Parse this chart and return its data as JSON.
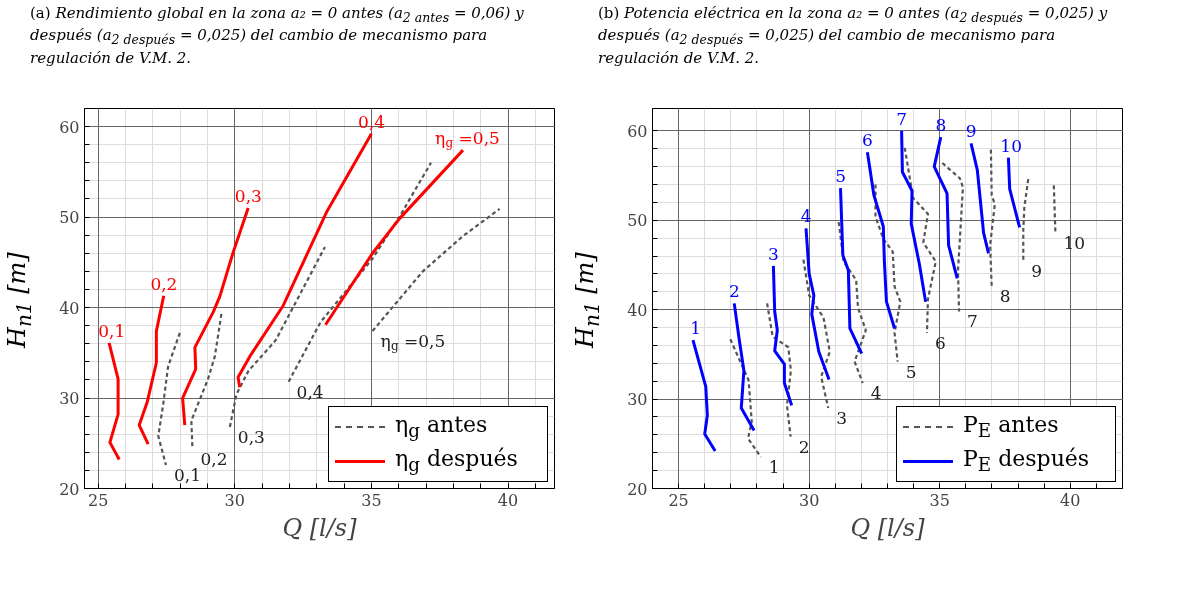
{
  "chart_data": [
    {
      "type": "line",
      "title": "(a) Rendimiento global en la zona a₂ = 0 antes (a$_{2 antes}$ = 0,06) y después (a$_{2 después}$ = 0,025) del cambio de mecanismo para regulación de V.M. 2.",
      "xlabel": "Q [l/s]",
      "ylabel": "H$_{n1}$ [m]",
      "xlim": [
        24.5,
        41.7
      ],
      "ylim": [
        20,
        62
      ],
      "xticks": [
        25,
        {
          "value": 26,
          "label": null
        },
        {
          "value": 27,
          "label": null
        },
        {
          "value": 28,
          "label": null
        },
        {
          "value": 29,
          "label": null
        },
        30,
        {
          "value": 31,
          "label": null
        },
        {
          "value": 32,
          "label": null
        },
        {
          "value": 33,
          "label": null
        },
        {
          "value": 34,
          "label": null
        },
        35,
        {
          "value": 36,
          "label": null
        },
        {
          "value": 37,
          "label": null
        },
        {
          "value": 38,
          "label": null
        },
        {
          "value": 39,
          "label": null
        },
        40,
        {
          "value": 41,
          "label": null
        }
      ],
      "yticks": [
        20,
        {
          "value": 22,
          "label": null
        },
        {
          "value": 24,
          "label": null
        },
        {
          "value": 26,
          "label": null
        },
        {
          "value": 28,
          "label": null
        },
        30,
        {
          "value": 32,
          "label": null
        },
        {
          "value": 34,
          "label": null
        },
        {
          "value": 36,
          "label": null
        },
        {
          "value": 38,
          "label": null
        },
        40,
        {
          "value": 42,
          "label": null
        },
        {
          "value": 44,
          "label": null
        },
        {
          "value": 46,
          "label": null
        },
        {
          "value": 48,
          "label": null
        },
        50,
        {
          "value": 52,
          "label": null
        },
        {
          "value": 54,
          "label": null
        },
        {
          "value": 56,
          "label": null
        },
        {
          "value": 58,
          "label": null
        },
        60
      ],
      "grid": true,
      "legend": "bottom right",
      "series": [
        {
          "name": "η$_{g}$ antes",
          "color": "#555555",
          "line_style": "dashed",
          "x": [
            27.99,
            27.56,
            27.38,
            27.2,
            27.48
          ],
          "values": [
            37.2,
            33.5,
            29.3,
            25.8,
            22.6
          ]
        },
        {
          "color": "#555555",
          "line_style": "dashed",
          "x": [
            29.51,
            29.27,
            29.02,
            28.41,
            28.45
          ],
          "values": [
            39.3,
            34.6,
            32.1,
            27.5,
            24.4
          ]
        },
        {
          "color": "#555555",
          "line_style": "dashed",
          "x": [
            29.82,
            30.06,
            30.5,
            31.5,
            33.3
          ],
          "values": [
            26.8,
            30.4,
            33.0,
            36.4,
            46.7
          ]
        },
        {
          "color": "#555555",
          "line_style": "dashed",
          "x": [
            31.97,
            33.14,
            35.04,
            36.02,
            37.18
          ],
          "values": [
            31.8,
            38.4,
            45.4,
            50.0,
            56.0
          ]
        },
        {
          "color": "#555555",
          "line_style": "dashed",
          "x": [
            35.04,
            36.88,
            38.35,
            39.69
          ],
          "values": [
            37.4,
            44.0,
            47.9,
            50.9
          ]
        },
        {
          "name": "η$_{g}$ después",
          "color": "#ff0000",
          "line_style": "solid",
          "x": [
            25.4,
            25.73,
            25.73,
            25.43,
            25.77
          ],
          "values": [
            36.1,
            32.1,
            28.2,
            25.1,
            23.2
          ]
        },
        {
          "color": "#ff0000",
          "line_style": "solid",
          "x": [
            27.4,
            27.13,
            27.13,
            26.79,
            26.5,
            26.83
          ],
          "values": [
            41.3,
            37.4,
            33.9,
            29.5,
            27.0,
            24.9
          ]
        },
        {
          "color": "#ff0000",
          "line_style": "solid",
          "x": [
            30.49,
            29.94,
            29.45,
            29.21,
            28.54,
            28.57,
            28.09,
            28.17
          ],
          "values": [
            51.0,
            46.1,
            41.2,
            39.5,
            35.6,
            33.2,
            30.0,
            27.0
          ]
        },
        {
          "color": "#ff0000",
          "line_style": "solid",
          "x": [
            30.18,
            30.12,
            30.55,
            31.77,
            33.35,
            35.0
          ],
          "values": [
            31.2,
            32.3,
            34.6,
            40.2,
            50.5,
            59.2
          ]
        },
        {
          "color": "#ff0000",
          "line_style": "solid",
          "x": [
            33.32,
            35.04,
            36.02,
            38.35
          ],
          "values": [
            38.1,
            46.0,
            49.8,
            57.4
          ]
        }
      ],
      "annotations": [
        {
          "text": "0,1",
          "x": 27.48,
          "y": 22.6
        },
        {
          "text": "0,2",
          "x": 28.45,
          "y": 24.4
        },
        {
          "text": "0,3",
          "x": 29.82,
          "y": 26.8
        },
        {
          "text": "0,4",
          "x": 31.97,
          "y": 31.8
        },
        {
          "text": "η$_{g}$ =0,5",
          "x": 35.04,
          "y": 37.4
        },
        {
          "text": "0,1",
          "x": 25.4,
          "y": 36.1
        },
        {
          "text": "0,2",
          "x": 27.4,
          "y": 41.3
        },
        {
          "text": "0,3",
          "x": 30.49,
          "y": 51.0
        },
        {
          "text": "0,4",
          "x": 35.0,
          "y": 59.2
        },
        {
          "text": "η$_{g}$ =0,5",
          "x": 38.35,
          "y": 57.4
        }
      ]
    },
    {
      "type": "line",
      "title": "(b) Potencia eléctrica en la zona a₂ = 0 antes (a$_{2 después}$ = 0,025) y después (a$_{2 después}$ = 0,025) del cambio de mecanismo para regulación de V.M. 2.",
      "xlabel": "Q [l/s]",
      "ylabel": "H$_{n1}$ [m]",
      "xlim": [
        24,
        42
      ],
      "ylim": [
        20,
        62.5
      ],
      "xticks": [
        {
          "value": 24,
          "label": null
        },
        25,
        {
          "value": 26,
          "label": null
        },
        {
          "value": 27,
          "label": null
        },
        {
          "value": 28,
          "label": null
        },
        {
          "value": 29,
          "label": null
        },
        30,
        {
          "value": 31,
          "label": null
        },
        {
          "value": 32,
          "label": null
        },
        {
          "value": 33,
          "label": null
        },
        {
          "value": 34,
          "label": null
        },
        35,
        {
          "value": 36,
          "label": null
        },
        {
          "value": 37,
          "label": null
        },
        {
          "value": 38,
          "label": null
        },
        {
          "value": 39,
          "label": null
        },
        40,
        {
          "value": 41,
          "label": null
        }
      ],
      "yticks": [
        20,
        {
          "value": 22,
          "label": null
        },
        {
          "value": 24,
          "label": null
        },
        {
          "value": 26,
          "label": null
        },
        {
          "value": 28,
          "label": null
        },
        30,
        {
          "value": 32,
          "label": null
        },
        {
          "value": 34,
          "label": null
        },
        {
          "value": 36,
          "label": null
        },
        {
          "value": 38,
          "label": null
        },
        40,
        {
          "value": 42,
          "label": null
        },
        {
          "value": 44,
          "label": null
        },
        {
          "value": 46,
          "label": null
        },
        {
          "value": 48,
          "label": null
        },
        50,
        {
          "value": 52,
          "label": null
        },
        {
          "value": 54,
          "label": null
        },
        {
          "value": 56,
          "label": null
        },
        {
          "value": 58,
          "label": null
        },
        60
      ],
      "grid": true,
      "legend": "bottom right",
      "series": [
        {
          "name": "P$_{E}$ antes",
          "color": "#555555",
          "line_style": "dashed",
          "x": [
            26.98,
            27.68,
            27.8,
            27.66,
            28.15
          ],
          "values": [
            36.7,
            32.1,
            27.5,
            25.6,
            23.5
          ]
        },
        {
          "color": "#555555",
          "line_style": "dashed",
          "x": [
            28.39,
            28.6,
            29.2,
            29.3,
            29.15,
            29.29
          ],
          "values": [
            40.7,
            37.0,
            35.8,
            33.2,
            29.3,
            25.8
          ]
        },
        {
          "color": "#555555",
          "line_style": "dashed",
          "x": [
            29.78,
            30.0,
            30.55,
            30.79,
            30.46,
            30.73
          ],
          "values": [
            45.6,
            41.6,
            39.1,
            35.3,
            32.5,
            29.0
          ]
        },
        {
          "color": "#555555",
          "line_style": "dashed",
          "x": [
            31.13,
            31.32,
            31.8,
            31.87,
            32.17,
            31.74,
            32.05
          ],
          "values": [
            49.8,
            45.4,
            43.3,
            40.2,
            37.7,
            34.2,
            31.8
          ]
        },
        {
          "color": "#555555",
          "line_style": "dashed",
          "x": [
            32.54,
            32.54,
            32.84,
            33.2,
            33.27,
            33.49,
            33.27,
            33.39
          ],
          "values": [
            54.0,
            50.4,
            47.9,
            46.5,
            42.6,
            40.9,
            37.4,
            34.2
          ]
        },
        {
          "color": "#555555",
          "line_style": "dashed",
          "x": [
            33.66,
            33.98,
            34.55,
            34.37,
            34.85,
            34.55,
            34.51
          ],
          "values": [
            58.1,
            52.5,
            50.7,
            47.5,
            45.4,
            41.2,
            37.4
          ]
        },
        {
          "color": "#555555",
          "line_style": "dashed",
          "x": [
            35.1,
            35.77,
            35.89,
            35.7,
            35.74
          ],
          "values": [
            56.4,
            54.7,
            53.7,
            44.4,
            39.8
          ]
        },
        {
          "color": "#555555",
          "line_style": "dashed",
          "x": [
            36.96,
            36.99,
            37.11,
            36.93,
            36.99
          ],
          "values": [
            57.9,
            52.8,
            51.8,
            47.2,
            42.6
          ]
        },
        {
          "color": "#555555",
          "line_style": "dashed",
          "x": [
            38.39,
            38.24,
            38.2,
            38.2
          ],
          "values": [
            54.6,
            51.4,
            48.9,
            45.4
          ]
        },
        {
          "color": "#555555",
          "line_style": "dashed",
          "x": [
            39.37,
            39.43
          ],
          "values": [
            53.9,
            48.6
          ]
        },
        {
          "name": "P$_{E}$ después",
          "color": "#0000ff",
          "line_style": "solid",
          "x": [
            25.55,
            26.04,
            26.1,
            26.0,
            26.4
          ],
          "values": [
            36.6,
            31.4,
            28.2,
            26.1,
            24.2
          ]
        },
        {
          "color": "#0000ff",
          "line_style": "solid",
          "x": [
            27.13,
            27.32,
            27.5,
            27.4,
            27.89
          ],
          "values": [
            40.7,
            36.7,
            33.2,
            29.0,
            26.5
          ]
        },
        {
          "color": "#0000ff",
          "line_style": "solid",
          "x": [
            28.63,
            28.68,
            28.78,
            28.68,
            29.05,
            29.05,
            29.33
          ],
          "values": [
            44.9,
            39.8,
            37.7,
            35.4,
            33.9,
            31.8,
            29.3
          ]
        },
        {
          "color": "#0000ff",
          "line_style": "solid",
          "x": [
            29.88,
            30.0,
            30.18,
            30.1,
            30.37,
            30.76
          ],
          "values": [
            49.1,
            44.0,
            41.6,
            39.5,
            35.3,
            32.2
          ]
        },
        {
          "color": "#0000ff",
          "line_style": "solid",
          "x": [
            31.2,
            31.29,
            31.5,
            31.56,
            32.01
          ],
          "values": [
            53.6,
            46.1,
            44.4,
            37.9,
            35.1
          ]
        },
        {
          "color": "#0000ff",
          "line_style": "solid",
          "x": [
            32.23,
            32.48,
            32.84,
            32.88,
            32.96,
            33.27
          ],
          "values": [
            57.6,
            52.8,
            49.3,
            45.4,
            40.9,
            37.9
          ]
        },
        {
          "color": "#0000ff",
          "line_style": "solid",
          "x": [
            33.54,
            33.57,
            33.94,
            33.91,
            34.22,
            34.46
          ],
          "values": [
            60.0,
            55.4,
            53.3,
            49.6,
            45.1,
            40.9
          ]
        },
        {
          "color": "#0000ff",
          "line_style": "solid",
          "x": [
            35.04,
            34.79,
            35.28,
            35.34,
            35.67
          ],
          "values": [
            59.3,
            56.0,
            53.0,
            47.2,
            43.5
          ]
        },
        {
          "color": "#0000ff",
          "line_style": "solid",
          "x": [
            36.2,
            36.44,
            36.68,
            36.87
          ],
          "values": [
            58.6,
            55.6,
            48.6,
            46.3
          ]
        },
        {
          "color": "#0000ff",
          "line_style": "solid",
          "x": [
            37.63,
            37.68,
            38.06
          ],
          "values": [
            57.0,
            53.5,
            49.2
          ]
        }
      ],
      "annotations": [
        {
          "text": "1",
          "x": 28.15,
          "y": 23.5
        },
        {
          "text": "2",
          "x": 29.29,
          "y": 25.8
        },
        {
          "text": "3",
          "x": 30.73,
          "y": 29.0
        },
        {
          "text": "4",
          "x": 32.05,
          "y": 31.8
        },
        {
          "text": "5",
          "x": 33.39,
          "y": 34.2
        },
        {
          "text": "6",
          "x": 34.51,
          "y": 37.4
        },
        {
          "text": "7",
          "x": 35.74,
          "y": 39.8
        },
        {
          "text": "8",
          "x": 36.99,
          "y": 42.6
        },
        {
          "text": "9",
          "x": 38.2,
          "y": 45.4
        },
        {
          "text": "10",
          "x": 39.43,
          "y": 48.6
        },
        {
          "text": "1",
          "x": 25.55,
          "y": 36.6
        },
        {
          "text": "2",
          "x": 27.13,
          "y": 40.7
        },
        {
          "text": "3",
          "x": 28.63,
          "y": 44.9
        },
        {
          "text": "4",
          "x": 29.88,
          "y": 49.1
        },
        {
          "text": "5",
          "x": 31.2,
          "y": 53.6
        },
        {
          "text": "6",
          "x": 32.23,
          "y": 57.6
        },
        {
          "text": "7",
          "x": 33.54,
          "y": 60.0
        },
        {
          "text": "8",
          "x": 35.04,
          "y": 59.3
        },
        {
          "text": "9",
          "x": 36.2,
          "y": 58.6
        },
        {
          "text": "10",
          "x": 37.63,
          "y": 57.0
        }
      ]
    }
  ]
}
